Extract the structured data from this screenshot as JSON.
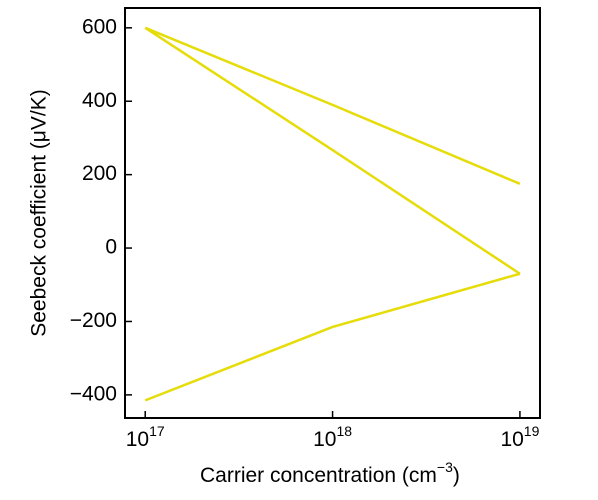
{
  "chart_data": {
    "type": "line",
    "x_label": {
      "text": "Carrier concentration (cm",
      "sup": "−3",
      "end": ")"
    },
    "y_label": "Seebeck coefficient (μV/K)",
    "x": [
      1e+17,
      1e+18,
      1e+19
    ],
    "series": [
      {
        "color": "#e6dc0a",
        "values": [
          600,
          390,
          175
        ]
      },
      {
        "color": "#e6dc0a",
        "values": [
          600,
          267,
          -70
        ]
      },
      {
        "color": "#e6dc0a",
        "values": [
          -415,
          -215,
          -70
        ]
      }
    ],
    "xscale": "log",
    "xlim": [
      7.8e+16,
      1.28e+19
    ],
    "xticks": [
      {
        "value": 1e+17,
        "label": "10",
        "exponent": "17"
      },
      {
        "value": 1e+18,
        "label": "10",
        "exponent": "18"
      },
      {
        "value": 1e+19,
        "label": "10",
        "exponent": "19"
      }
    ],
    "ylim": [
      -463,
      654
    ],
    "yticks": [
      {
        "value": -400,
        "label": "−400"
      },
      {
        "value": -200,
        "label": "−200"
      },
      0,
      200,
      400,
      600
    ],
    "grid": false
  }
}
